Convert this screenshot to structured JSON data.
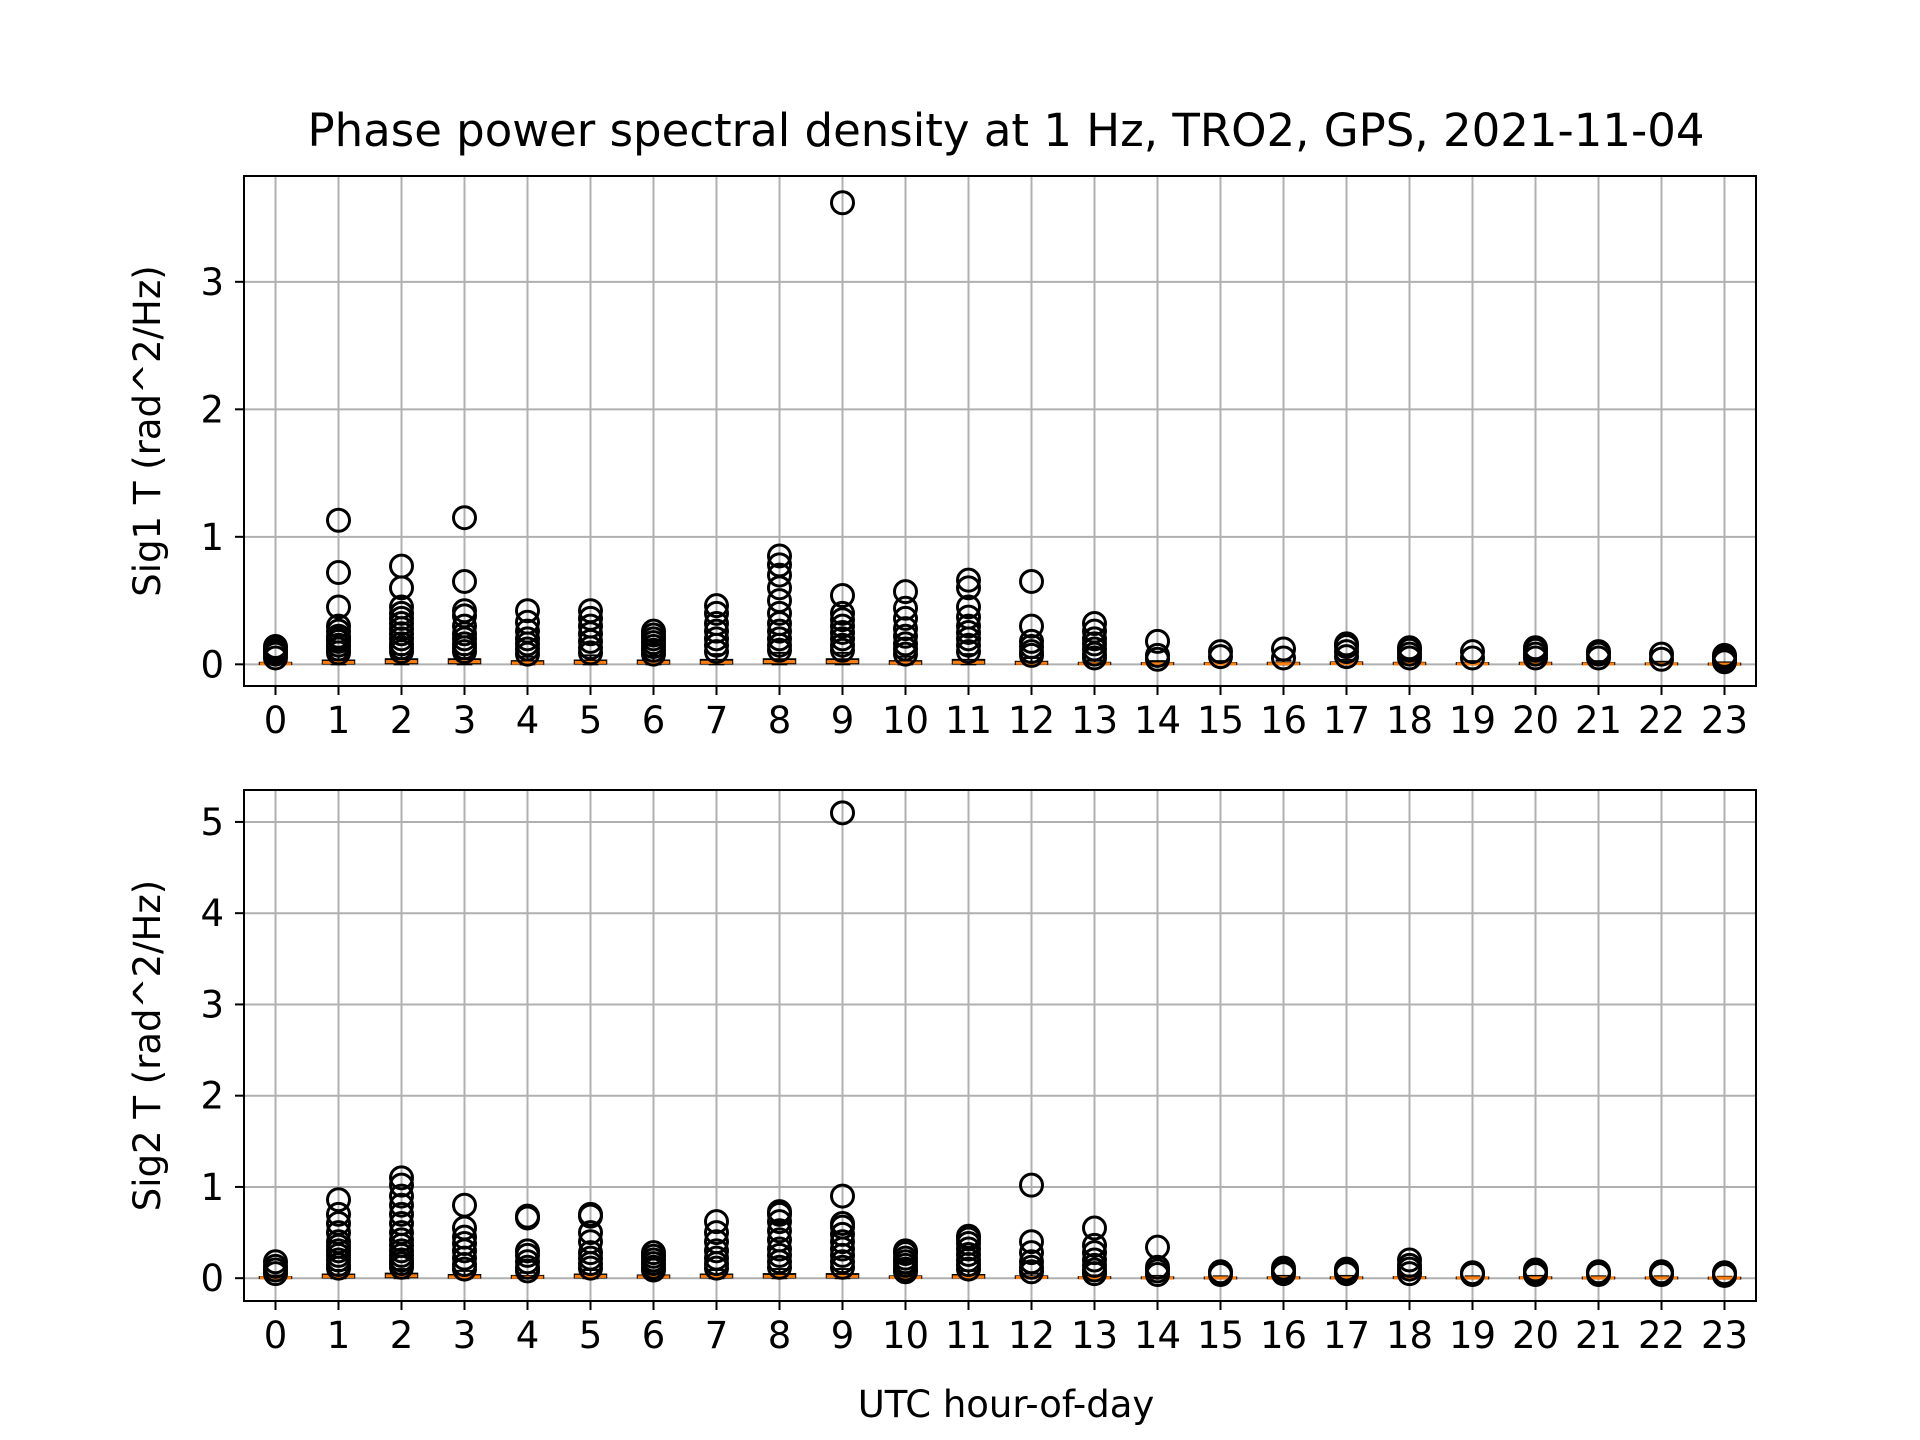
{
  "chart_data": {
    "type": "box",
    "title": "Phase power spectral density at 1 Hz, TRO2, GPS, 2021-11-04",
    "xlabel": "UTC hour-of-day",
    "categories": [
      "0",
      "1",
      "2",
      "3",
      "4",
      "5",
      "6",
      "7",
      "8",
      "9",
      "10",
      "11",
      "12",
      "13",
      "14",
      "15",
      "16",
      "17",
      "18",
      "19",
      "20",
      "21",
      "22",
      "23"
    ],
    "colors": {
      "outlier": "#000000",
      "median": "#ff7f0e",
      "grid": "#b0b0b0",
      "box": "#000000"
    },
    "grid": true,
    "legend": "none",
    "subplots": [
      {
        "ylabel": "Sig1 T (rad^2/Hz)",
        "ylim": [
          -0.17,
          3.83
        ],
        "yticks": [
          0,
          1,
          2,
          3
        ],
        "yticklabels": [
          "0",
          "1",
          "2",
          "3"
        ],
        "series": [
          {
            "hour": 0,
            "median": 0.005,
            "q1": 0.002,
            "q3": 0.012,
            "whisker_low": 0.0,
            "whisker_high": 0.03,
            "outliers": [
              0.05,
              0.08,
              0.1,
              0.12,
              0.14
            ]
          },
          {
            "hour": 1,
            "median": 0.015,
            "q1": 0.006,
            "q3": 0.03,
            "whisker_low": 0.0,
            "whisker_high": 0.07,
            "outliers": [
              0.09,
              0.12,
              0.15,
              0.18,
              0.2,
              0.22,
              0.26,
              0.3,
              0.45,
              0.72,
              1.13
            ]
          },
          {
            "hour": 2,
            "median": 0.02,
            "q1": 0.008,
            "q3": 0.04,
            "whisker_low": 0.0,
            "whisker_high": 0.08,
            "outliers": [
              0.1,
              0.13,
              0.16,
              0.2,
              0.24,
              0.28,
              0.32,
              0.36,
              0.4,
              0.45,
              0.6,
              0.77
            ]
          },
          {
            "hour": 3,
            "median": 0.02,
            "q1": 0.008,
            "q3": 0.04,
            "whisker_low": 0.0,
            "whisker_high": 0.08,
            "outliers": [
              0.1,
              0.13,
              0.16,
              0.2,
              0.24,
              0.3,
              0.38,
              0.42,
              0.65,
              1.15
            ]
          },
          {
            "hour": 4,
            "median": 0.01,
            "q1": 0.004,
            "q3": 0.025,
            "whisker_low": 0.0,
            "whisker_high": 0.06,
            "outliers": [
              0.08,
              0.12,
              0.16,
              0.2,
              0.26,
              0.33,
              0.42
            ]
          },
          {
            "hour": 5,
            "median": 0.015,
            "q1": 0.006,
            "q3": 0.03,
            "whisker_low": 0.0,
            "whisker_high": 0.07,
            "outliers": [
              0.09,
              0.13,
              0.18,
              0.24,
              0.3,
              0.36,
              0.42
            ]
          },
          {
            "hour": 6,
            "median": 0.015,
            "q1": 0.006,
            "q3": 0.03,
            "whisker_low": 0.0,
            "whisker_high": 0.07,
            "outliers": [
              0.08,
              0.11,
              0.14,
              0.17,
              0.2,
              0.23,
              0.26
            ]
          },
          {
            "hour": 7,
            "median": 0.015,
            "q1": 0.006,
            "q3": 0.035,
            "whisker_low": 0.0,
            "whisker_high": 0.08,
            "outliers": [
              0.1,
              0.15,
              0.2,
              0.26,
              0.32,
              0.4,
              0.46
            ]
          },
          {
            "hour": 8,
            "median": 0.02,
            "q1": 0.008,
            "q3": 0.04,
            "whisker_low": 0.0,
            "whisker_high": 0.09,
            "outliers": [
              0.11,
              0.15,
              0.2,
              0.26,
              0.32,
              0.4,
              0.5,
              0.6,
              0.7,
              0.78,
              0.85
            ]
          },
          {
            "hour": 9,
            "median": 0.02,
            "q1": 0.008,
            "q3": 0.04,
            "whisker_low": 0.0,
            "whisker_high": 0.09,
            "outliers": [
              0.11,
              0.15,
              0.2,
              0.25,
              0.3,
              0.35,
              0.4,
              0.54,
              3.62
            ]
          },
          {
            "hour": 10,
            "median": 0.01,
            "q1": 0.004,
            "q3": 0.025,
            "whisker_low": 0.0,
            "whisker_high": 0.06,
            "outliers": [
              0.08,
              0.12,
              0.16,
              0.22,
              0.28,
              0.36,
              0.44,
              0.57
            ]
          },
          {
            "hour": 11,
            "median": 0.015,
            "q1": 0.006,
            "q3": 0.035,
            "whisker_low": 0.0,
            "whisker_high": 0.08,
            "outliers": [
              0.1,
              0.15,
              0.2,
              0.25,
              0.3,
              0.37,
              0.45,
              0.6,
              0.66
            ]
          },
          {
            "hour": 12,
            "median": 0.008,
            "q1": 0.003,
            "q3": 0.02,
            "whisker_low": 0.0,
            "whisker_high": 0.05,
            "outliers": [
              0.07,
              0.1,
              0.14,
              0.18,
              0.3,
              0.65
            ]
          },
          {
            "hour": 13,
            "median": 0.005,
            "q1": 0.002,
            "q3": 0.012,
            "whisker_low": 0.0,
            "whisker_high": 0.03,
            "outliers": [
              0.05,
              0.08,
              0.12,
              0.16,
              0.2,
              0.26,
              0.32
            ]
          },
          {
            "hour": 14,
            "median": 0.004,
            "q1": 0.002,
            "q3": 0.01,
            "whisker_low": 0.0,
            "whisker_high": 0.025,
            "outliers": [
              0.04,
              0.07,
              0.18
            ]
          },
          {
            "hour": 15,
            "median": 0.004,
            "q1": 0.002,
            "q3": 0.01,
            "whisker_low": 0.0,
            "whisker_high": 0.025,
            "outliers": [
              0.06,
              0.1
            ]
          },
          {
            "hour": 16,
            "median": 0.005,
            "q1": 0.002,
            "q3": 0.012,
            "whisker_low": 0.0,
            "whisker_high": 0.03,
            "outliers": [
              0.05,
              0.12
            ]
          },
          {
            "hour": 17,
            "median": 0.006,
            "q1": 0.003,
            "q3": 0.015,
            "whisker_low": 0.0,
            "whisker_high": 0.035,
            "outliers": [
              0.06,
              0.1,
              0.14,
              0.16
            ]
          },
          {
            "hour": 18,
            "median": 0.005,
            "q1": 0.002,
            "q3": 0.012,
            "whisker_low": 0.0,
            "whisker_high": 0.03,
            "outliers": [
              0.05,
              0.08,
              0.11,
              0.13
            ]
          },
          {
            "hour": 19,
            "median": 0.004,
            "q1": 0.002,
            "q3": 0.01,
            "whisker_low": 0.0,
            "whisker_high": 0.025,
            "outliers": [
              0.05,
              0.1
            ]
          },
          {
            "hour": 20,
            "median": 0.005,
            "q1": 0.002,
            "q3": 0.012,
            "whisker_low": 0.0,
            "whisker_high": 0.03,
            "outliers": [
              0.05,
              0.08,
              0.11,
              0.13
            ]
          },
          {
            "hour": 21,
            "median": 0.004,
            "q1": 0.002,
            "q3": 0.01,
            "whisker_low": 0.0,
            "whisker_high": 0.025,
            "outliers": [
              0.05,
              0.08,
              0.1
            ]
          },
          {
            "hour": 22,
            "median": 0.003,
            "q1": 0.001,
            "q3": 0.008,
            "whisker_low": 0.0,
            "whisker_high": 0.02,
            "outliers": [
              0.04,
              0.08
            ]
          },
          {
            "hour": 23,
            "median": 0.002,
            "q1": 0.001,
            "q3": 0.006,
            "whisker_low": 0.0,
            "whisker_high": 0.015,
            "outliers": [
              0.02,
              0.04,
              0.06,
              0.07
            ]
          }
        ]
      },
      {
        "ylabel": "Sig2 T (rad^2/Hz)",
        "ylim": [
          -0.25,
          5.35
        ],
        "yticks": [
          0,
          1,
          2,
          3,
          4,
          5
        ],
        "yticklabels": [
          "0",
          "1",
          "2",
          "3",
          "4",
          "5"
        ],
        "series": [
          {
            "hour": 0,
            "median": 0.005,
            "q1": 0.002,
            "q3": 0.012,
            "whisker_low": 0.0,
            "whisker_high": 0.03,
            "outliers": [
              0.05,
              0.09,
              0.13,
              0.18
            ]
          },
          {
            "hour": 1,
            "median": 0.02,
            "q1": 0.008,
            "q3": 0.04,
            "whisker_low": 0.0,
            "whisker_high": 0.09,
            "outliers": [
              0.11,
              0.15,
              0.2,
              0.25,
              0.3,
              0.35,
              0.4,
              0.5,
              0.6,
              0.7,
              0.86
            ]
          },
          {
            "hour": 2,
            "median": 0.025,
            "q1": 0.01,
            "q3": 0.05,
            "whisker_low": 0.0,
            "whisker_high": 0.1,
            "outliers": [
              0.12,
              0.16,
              0.2,
              0.25,
              0.3,
              0.36,
              0.42,
              0.5,
              0.6,
              0.7,
              0.8,
              0.9,
              1.02,
              1.1
            ]
          },
          {
            "hour": 3,
            "median": 0.015,
            "q1": 0.006,
            "q3": 0.035,
            "whisker_low": 0.0,
            "whisker_high": 0.08,
            "outliers": [
              0.1,
              0.15,
              0.22,
              0.3,
              0.38,
              0.45,
              0.55,
              0.8
            ]
          },
          {
            "hour": 4,
            "median": 0.01,
            "q1": 0.004,
            "q3": 0.025,
            "whisker_low": 0.0,
            "whisker_high": 0.06,
            "outliers": [
              0.08,
              0.12,
              0.18,
              0.25,
              0.3,
              0.66,
              0.68
            ]
          },
          {
            "hour": 5,
            "median": 0.02,
            "q1": 0.008,
            "q3": 0.04,
            "whisker_low": 0.0,
            "whisker_high": 0.09,
            "outliers": [
              0.11,
              0.16,
              0.22,
              0.28,
              0.4,
              0.5,
              0.68,
              0.7
            ]
          },
          {
            "hour": 6,
            "median": 0.015,
            "q1": 0.006,
            "q3": 0.03,
            "whisker_low": 0.0,
            "whisker_high": 0.07,
            "outliers": [
              0.09,
              0.12,
              0.16,
              0.2,
              0.24,
              0.28
            ]
          },
          {
            "hour": 7,
            "median": 0.02,
            "q1": 0.008,
            "q3": 0.04,
            "whisker_low": 0.0,
            "whisker_high": 0.09,
            "outliers": [
              0.11,
              0.16,
              0.22,
              0.3,
              0.4,
              0.5,
              0.62
            ]
          },
          {
            "hour": 8,
            "median": 0.02,
            "q1": 0.008,
            "q3": 0.045,
            "whisker_low": 0.0,
            "whisker_high": 0.1,
            "outliers": [
              0.12,
              0.18,
              0.25,
              0.32,
              0.42,
              0.52,
              0.62,
              0.7,
              0.73
            ]
          },
          {
            "hour": 9,
            "median": 0.02,
            "q1": 0.008,
            "q3": 0.045,
            "whisker_low": 0.0,
            "whisker_high": 0.1,
            "outliers": [
              0.12,
              0.18,
              0.25,
              0.32,
              0.4,
              0.48,
              0.56,
              0.6,
              0.9,
              5.1
            ]
          },
          {
            "hour": 10,
            "median": 0.008,
            "q1": 0.003,
            "q3": 0.02,
            "whisker_low": 0.0,
            "whisker_high": 0.05,
            "outliers": [
              0.07,
              0.1,
              0.14,
              0.18,
              0.22,
              0.27,
              0.3
            ]
          },
          {
            "hour": 11,
            "median": 0.015,
            "q1": 0.006,
            "q3": 0.035,
            "whisker_low": 0.0,
            "whisker_high": 0.08,
            "outliers": [
              0.1,
              0.15,
              0.2,
              0.26,
              0.32,
              0.38,
              0.43,
              0.46
            ]
          },
          {
            "hour": 12,
            "median": 0.008,
            "q1": 0.003,
            "q3": 0.02,
            "whisker_low": 0.0,
            "whisker_high": 0.05,
            "outliers": [
              0.07,
              0.12,
              0.18,
              0.28,
              0.4,
              1.02
            ]
          },
          {
            "hour": 13,
            "median": 0.005,
            "q1": 0.002,
            "q3": 0.012,
            "whisker_low": 0.0,
            "whisker_high": 0.03,
            "outliers": [
              0.05,
              0.09,
              0.14,
              0.2,
              0.28,
              0.36,
              0.55
            ]
          },
          {
            "hour": 14,
            "median": 0.004,
            "q1": 0.002,
            "q3": 0.01,
            "whisker_low": 0.0,
            "whisker_high": 0.025,
            "outliers": [
              0.04,
              0.08,
              0.12,
              0.34
            ]
          },
          {
            "hour": 15,
            "median": 0.003,
            "q1": 0.001,
            "q3": 0.008,
            "whisker_low": 0.0,
            "whisker_high": 0.02,
            "outliers": [
              0.04,
              0.07
            ]
          },
          {
            "hour": 16,
            "median": 0.004,
            "q1": 0.002,
            "q3": 0.01,
            "whisker_low": 0.0,
            "whisker_high": 0.025,
            "outliers": [
              0.05,
              0.08,
              0.11
            ]
          },
          {
            "hour": 17,
            "median": 0.004,
            "q1": 0.002,
            "q3": 0.01,
            "whisker_low": 0.0,
            "whisker_high": 0.025,
            "outliers": [
              0.05,
              0.08,
              0.1
            ]
          },
          {
            "hour": 18,
            "median": 0.005,
            "q1": 0.002,
            "q3": 0.012,
            "whisker_low": 0.0,
            "whisker_high": 0.03,
            "outliers": [
              0.05,
              0.1,
              0.14,
              0.2
            ]
          },
          {
            "hour": 19,
            "median": 0.003,
            "q1": 0.001,
            "q3": 0.008,
            "whisker_low": 0.0,
            "whisker_high": 0.02,
            "outliers": [
              0.04,
              0.06
            ]
          },
          {
            "hour": 20,
            "median": 0.004,
            "q1": 0.002,
            "q3": 0.01,
            "whisker_low": 0.0,
            "whisker_high": 0.025,
            "outliers": [
              0.04,
              0.07,
              0.09
            ]
          },
          {
            "hour": 21,
            "median": 0.003,
            "q1": 0.001,
            "q3": 0.008,
            "whisker_low": 0.0,
            "whisker_high": 0.02,
            "outliers": [
              0.04,
              0.07
            ]
          },
          {
            "hour": 22,
            "median": 0.003,
            "q1": 0.001,
            "q3": 0.008,
            "whisker_low": 0.0,
            "whisker_high": 0.02,
            "outliers": [
              0.04,
              0.07
            ]
          },
          {
            "hour": 23,
            "median": 0.002,
            "q1": 0.001,
            "q3": 0.006,
            "whisker_low": 0.0,
            "whisker_high": 0.015,
            "outliers": [
              0.03,
              0.06
            ]
          }
        ]
      }
    ]
  }
}
